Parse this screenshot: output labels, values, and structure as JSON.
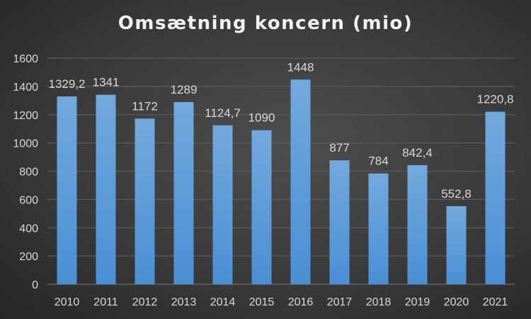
{
  "chart_data": {
    "type": "bar",
    "title": "Omsætning koncern (mio)",
    "xlabel": "",
    "ylabel": "",
    "categories": [
      "2010",
      "2011",
      "2012",
      "2013",
      "2014",
      "2015",
      "2016",
      "2017",
      "2018",
      "2019",
      "2020",
      "2021"
    ],
    "values": [
      1329.2,
      1341,
      1172,
      1289,
      1124.7,
      1090,
      1448,
      877,
      784,
      842.4,
      552.8,
      1220.8
    ],
    "data_labels": [
      "1329,2",
      "1341",
      "1172",
      "1289",
      "1124,7",
      "1090",
      "1448",
      "877",
      "784",
      "842,4",
      "552,8",
      "1220,8"
    ],
    "ylim": [
      0,
      1600
    ],
    "yticks": [
      0,
      200,
      400,
      600,
      800,
      1000,
      1200,
      1400,
      1600
    ],
    "grid": true,
    "legend": "none",
    "colors": {
      "bar_top": "#6fa8dc",
      "bar_bottom": "#4a8fd4",
      "text": "#d9d9d9",
      "grid": "#5a5a5a"
    }
  }
}
